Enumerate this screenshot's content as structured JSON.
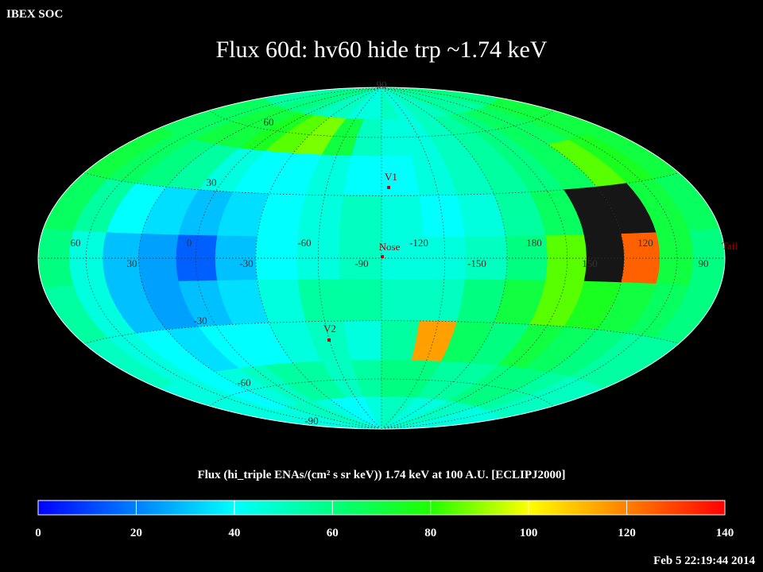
{
  "header": "IBEX SOC",
  "title": "Flux   60d: hv60 hide trp ~1.74 keV",
  "map": {
    "lat_labels": [
      "90",
      "60",
      "30",
      "-30",
      "-60",
      "-90"
    ],
    "lon_labels": [
      "60",
      "30",
      "0",
      "-30",
      "-60",
      "-90",
      "-120",
      "-150",
      "180",
      "150",
      "120",
      "90"
    ],
    "markers": [
      "V1",
      "Nose",
      "V2",
      "Tail"
    ],
    "values": [
      [
        55,
        55,
        60,
        60,
        55,
        50,
        50,
        45,
        45,
        50,
        45,
        50,
        50,
        55,
        55,
        55,
        60,
        60
      ],
      [
        65,
        65,
        70,
        70,
        75,
        85,
        88,
        70,
        50,
        45,
        45,
        50,
        55,
        60,
        65,
        65,
        70,
        70
      ],
      [
        70,
        65,
        60,
        55,
        45,
        40,
        40,
        45,
        40,
        40,
        45,
        50,
        55,
        60,
        65,
        85,
        75,
        70
      ],
      [
        65,
        55,
        40,
        35,
        30,
        35,
        40,
        45,
        50,
        45,
        40,
        45,
        55,
        65,
        null,
        null,
        70,
        65
      ],
      [
        60,
        45,
        30,
        25,
        15,
        30,
        40,
        45,
        50,
        45,
        45,
        50,
        60,
        85,
        null,
        125,
        70,
        60
      ],
      [
        55,
        45,
        30,
        25,
        30,
        35,
        45,
        55,
        55,
        50,
        50,
        60,
        70,
        85,
        75,
        70,
        65,
        60
      ],
      [
        50,
        45,
        40,
        35,
        40,
        40,
        45,
        50,
        45,
        55,
        115,
        65,
        60,
        70,
        65,
        60,
        55,
        55
      ],
      [
        45,
        45,
        40,
        45,
        50,
        55,
        55,
        50,
        55,
        60,
        60,
        55,
        55,
        60,
        60,
        55,
        50,
        50
      ],
      [
        45,
        45,
        45,
        50,
        50,
        45,
        40,
        40,
        45,
        50,
        50,
        45,
        45,
        50,
        50,
        45,
        45,
        45
      ]
    ]
  },
  "colorbar": {
    "label": "Flux (hi_triple ENAs/(cm² s sr keV))  1.74 keV at 100 A.U. [ECLIPJ2000]",
    "lim": [
      0,
      140
    ],
    "ticks": [
      0,
      20,
      40,
      60,
      80,
      100,
      120,
      140
    ],
    "colors": [
      "#0000ff",
      "#0080ff",
      "#00ffff",
      "#00ff80",
      "#20ff00",
      "#ffff00",
      "#ff8000",
      "#ff0000"
    ]
  },
  "timestamp": "Feb  5 22:19:44 2014"
}
